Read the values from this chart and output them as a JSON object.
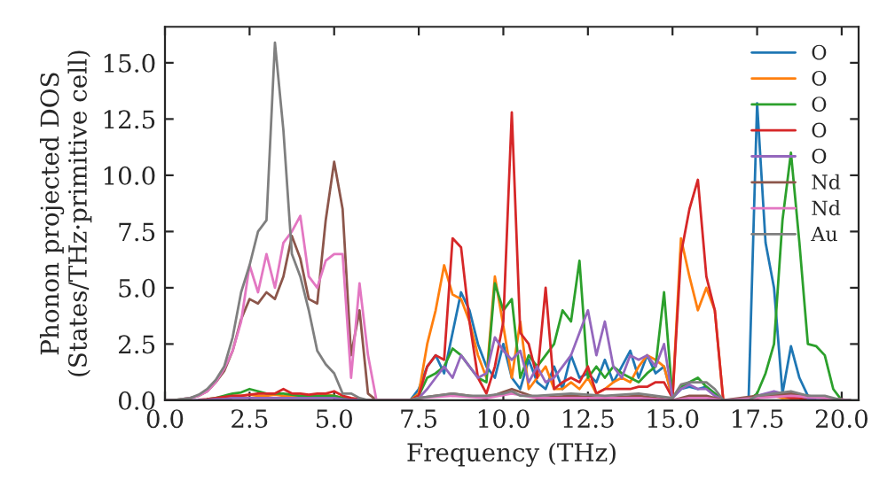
{
  "chart_data": {
    "type": "line",
    "xlabel": "Frequency (THz)",
    "ylabel": "Phonon projected DOS\n(States/THz·primitive cell)",
    "xlim": [
      0.0,
      20.5
    ],
    "ylim": [
      0.0,
      16.6
    ],
    "xticks": [
      {
        "value": 0,
        "label": "0.0"
      },
      2.5,
      {
        "value": 5,
        "label": "5.0"
      },
      7.5,
      {
        "value": 10,
        "label": "10.0"
      },
      12.5,
      {
        "value": 15,
        "label": "15.0"
      },
      17.5,
      {
        "value": 20,
        "label": "20.0"
      }
    ],
    "yticks": [
      {
        "value": 0,
        "label": "0.0"
      },
      2.5,
      {
        "value": 5,
        "label": "5.0"
      },
      7.5,
      {
        "value": 10,
        "label": "10.0"
      },
      12.5,
      {
        "value": 15,
        "label": "15.0"
      }
    ],
    "grid": false,
    "legend": "top right",
    "marker": "none",
    "line_style": "solid",
    "x": [
      0,
      0.25,
      0.5,
      0.75,
      1,
      1.25,
      1.5,
      1.75,
      2,
      2.25,
      2.5,
      2.75,
      3,
      3.25,
      3.5,
      3.75,
      4,
      4.25,
      4.5,
      4.75,
      5,
      5.25,
      5.5,
      5.75,
      6,
      6.25,
      6.5,
      6.75,
      7,
      7.25,
      7.5,
      7.75,
      8,
      8.25,
      8.5,
      8.75,
      9,
      9.25,
      9.5,
      9.75,
      10,
      10.25,
      10.5,
      10.75,
      11,
      11.25,
      11.5,
      11.75,
      12,
      12.25,
      12.5,
      12.75,
      13,
      13.25,
      13.5,
      13.75,
      14,
      14.25,
      14.5,
      14.75,
      15,
      15.25,
      15.5,
      15.75,
      16,
      16.25,
      16.5,
      16.75,
      17,
      17.25,
      17.5,
      17.75,
      18,
      18.25,
      18.5,
      18.75,
      19,
      19.25,
      19.5,
      19.75,
      20,
      20.25
    ],
    "series": [
      {
        "name": "O",
        "color": "#1f77b4",
        "values": [
          null,
          null,
          null,
          null,
          null,
          null,
          null,
          null,
          null,
          null,
          null,
          null,
          null,
          null,
          null,
          null,
          null,
          null,
          null,
          null,
          null,
          null,
          null,
          null,
          null,
          null,
          null,
          null,
          null,
          0,
          0.5,
          1.5,
          2.0,
          1.2,
          3.0,
          4.8,
          4.0,
          2.5,
          1.5,
          1.0,
          2.5,
          1.0,
          0.5,
          1.8,
          0.8,
          0.5,
          1.5,
          0.5,
          2.0,
          1.0,
          1.2,
          0.8,
          1.8,
          0.8,
          1.5,
          2.2,
          1.0,
          2.0,
          1.2,
          1.5,
          0.1,
          0.5,
          0.6,
          0.5,
          0.6,
          0.3,
          0,
          0,
          0,
          0.1,
          13.2,
          7.0,
          5.0,
          0.3,
          2.4,
          1.0,
          0.2,
          0,
          0,
          null,
          null,
          null
        ]
      },
      {
        "name": "O",
        "color": "#ff7f0e",
        "values": [
          null,
          null,
          null,
          null,
          null,
          null,
          null,
          0.15,
          0.2,
          0.2,
          0.25,
          0.2,
          0.2,
          0.25,
          0.2,
          0.2,
          0.2,
          0.2,
          0.2,
          0.25,
          0.2,
          0.1,
          0.05,
          0.05,
          0,
          0,
          0,
          0,
          0,
          0,
          0.3,
          2.5,
          4.0,
          6.0,
          4.7,
          4.5,
          3.5,
          2.0,
          1.0,
          5.5,
          3.3,
          1.0,
          3.5,
          0.5,
          1.0,
          1.5,
          0.5,
          0.5,
          0.8,
          0.5,
          1.0,
          0.3,
          0.5,
          0.8,
          1.0,
          0.8,
          1.5,
          2.0,
          1.8,
          1.5,
          0.1,
          7.2,
          5.5,
          4.0,
          5.0,
          4.0,
          0,
          0,
          0,
          0,
          0.1,
          0.2,
          0.2,
          0.1,
          0.1,
          0.1,
          null,
          null,
          null,
          null,
          null,
          null
        ]
      },
      {
        "name": "O",
        "color": "#2ca02c",
        "values": [
          null,
          null,
          null,
          null,
          null,
          0.05,
          0.1,
          0.2,
          0.3,
          0.35,
          0.5,
          0.4,
          0.3,
          0.3,
          0.3,
          0.25,
          0.2,
          0.2,
          0.2,
          0.2,
          0.2,
          0.1,
          0.05,
          0.05,
          0,
          0,
          0,
          0,
          0,
          0,
          0.2,
          1.0,
          1.2,
          1.5,
          2.3,
          2.0,
          1.5,
          1.0,
          0.8,
          5.2,
          4.0,
          4.5,
          1.0,
          2.0,
          1.5,
          2.0,
          2.5,
          4.0,
          3.5,
          6.2,
          1.0,
          1.5,
          1.0,
          1.5,
          1.2,
          1.0,
          0.8,
          1.2,
          1.5,
          4.8,
          0.1,
          0.6,
          0.8,
          1.0,
          0.6,
          0.3,
          0,
          0,
          0,
          0,
          0.3,
          1.2,
          2.5,
          8.0,
          11.0,
          7.0,
          2.5,
          2.4,
          2.0,
          0.5,
          0,
          0
        ]
      },
      {
        "name": "O",
        "color": "#d62728",
        "values": [
          null,
          null,
          null,
          null,
          0.02,
          0.05,
          0.1,
          0.15,
          0.2,
          0.2,
          0.25,
          0.3,
          0.3,
          0.3,
          0.5,
          0.3,
          0.3,
          0.25,
          0.3,
          0.3,
          0.4,
          0.2,
          0.1,
          0.05,
          0,
          0,
          0,
          0,
          0,
          0,
          0.2,
          1.5,
          2.0,
          1.8,
          7.2,
          6.8,
          3.5,
          1.0,
          0.3,
          1.5,
          3.5,
          12.8,
          3.0,
          2.5,
          1.0,
          5.0,
          0.5,
          0.8,
          1.0,
          0.8,
          1.5,
          0.3,
          0.5,
          0.5,
          0.5,
          0.5,
          0.6,
          0.6,
          0.8,
          0.8,
          0.1,
          6.5,
          8.5,
          9.8,
          5.5,
          4.0,
          0,
          0,
          0,
          0,
          0.1,
          0.2,
          0.3,
          0.2,
          0.1,
          0.1,
          0,
          null,
          null,
          null,
          null,
          null
        ]
      },
      {
        "name": "O",
        "color": "#9467bd",
        "values": [
          0,
          0,
          0,
          0,
          0.01,
          0.02,
          0.05,
          0.05,
          0.1,
          0.1,
          0.1,
          0.1,
          0.1,
          0.1,
          0.1,
          0.1,
          0.1,
          0.1,
          0.1,
          0.1,
          0.1,
          0.05,
          0.02,
          0.02,
          0,
          0,
          0,
          0,
          0,
          0,
          0.1,
          0.5,
          1.0,
          1.5,
          1.0,
          2.0,
          1.5,
          1.0,
          1.2,
          2.8,
          2.2,
          1.8,
          2.2,
          0.8,
          1.5,
          0.8,
          1.0,
          1.5,
          2.0,
          3.0,
          4.0,
          2.0,
          3.5,
          1.5,
          1.0,
          2.0,
          1.8,
          2.0,
          1.5,
          2.5,
          0.1,
          0.5,
          0.7,
          0.5,
          0.5,
          0.2,
          0,
          0,
          0,
          0,
          0.2,
          0.3,
          0.4,
          0.3,
          0.3,
          0.2,
          0.1,
          0,
          0,
          0,
          0,
          0
        ]
      },
      {
        "name": "Nd",
        "color": "#8c564b",
        "x": [
          0,
          0.25,
          0.5,
          0.75,
          1,
          1.25,
          1.5,
          1.75,
          2,
          2.25,
          2.5,
          2.75,
          3,
          3.25,
          3.5,
          3.75,
          4,
          4.25,
          4.5,
          4.75,
          5,
          5.25,
          5.5,
          5.75,
          6,
          6.25,
          7.25,
          7.5,
          8.5,
          9.5,
          10.25,
          11,
          12,
          13,
          14,
          15,
          15.5,
          16,
          16.5,
          17.5,
          18.5,
          19.5,
          20.25
        ],
        "values": [
          0,
          0,
          0.05,
          0.1,
          0.2,
          0.4,
          0.8,
          1.3,
          2.2,
          3.6,
          4.5,
          4.3,
          4.8,
          4.5,
          5.5,
          7.3,
          6.3,
          4.5,
          4.3,
          8.0,
          10.6,
          8.5,
          2.0,
          4.0,
          0.3,
          0,
          0,
          0.1,
          0.3,
          0.1,
          0.5,
          0.1,
          0.2,
          0.1,
          0.2,
          0,
          0.2,
          0.2,
          0,
          0.2,
          0.3,
          0.1,
          0
        ]
      },
      {
        "name": "Nd",
        "color": "#e377c2",
        "x": [
          0.5,
          0.75,
          1,
          1.25,
          1.5,
          1.75,
          2,
          2.25,
          2.5,
          2.75,
          3,
          3.25,
          3.5,
          3.75,
          4,
          4.25,
          4.5,
          4.75,
          5,
          5.25,
          5.5,
          5.75,
          6,
          6.25,
          7.25,
          7.5,
          8.5,
          9.5,
          10.25,
          11,
          12,
          13,
          14,
          15,
          15.5,
          16,
          16.5,
          17.5,
          18.5,
          19.5,
          20.25
        ],
        "values": [
          0.05,
          0.1,
          0.2,
          0.4,
          0.8,
          1.4,
          2.2,
          3.5,
          6.0,
          4.8,
          6.5,
          5.0,
          7.0,
          7.5,
          8.2,
          5.5,
          5.0,
          6.2,
          6.5,
          6.5,
          1.0,
          5.2,
          2.0,
          0,
          0,
          0.1,
          0.2,
          0.1,
          0.3,
          0.1,
          0.1,
          0.1,
          0.1,
          0,
          0.1,
          0.1,
          0,
          0.1,
          0.2,
          0.1,
          0
        ]
      },
      {
        "name": "Au",
        "color": "#7f7f7f",
        "x": [
          0,
          0.25,
          0.5,
          0.75,
          1,
          1.25,
          1.5,
          1.75,
          2,
          2.25,
          2.5,
          2.75,
          3,
          3.25,
          3.5,
          3.75,
          4,
          4.25,
          4.5,
          4.75,
          5,
          5.25,
          5.5,
          5.75,
          6,
          6.25,
          7.25,
          7.5,
          8,
          8.5,
          9,
          9.5,
          10,
          10.25,
          10.5,
          11,
          12,
          13,
          14,
          15,
          15.25,
          15.5,
          16,
          16.25,
          16.5,
          17.25,
          17.5,
          18,
          18.5,
          19,
          19.5,
          20,
          20.25
        ],
        "values": [
          0,
          0,
          0.05,
          0.1,
          0.25,
          0.5,
          0.9,
          1.5,
          2.8,
          4.8,
          6.0,
          7.5,
          8.0,
          15.9,
          12.0,
          6.5,
          5.5,
          4.0,
          2.2,
          1.6,
          1.2,
          0.3,
          0.3,
          0.1,
          0,
          0,
          0,
          0.1,
          0.2,
          0.3,
          0.2,
          0.2,
          0.3,
          0.4,
          0.2,
          0.2,
          0.3,
          0.2,
          0.3,
          0.1,
          0.7,
          0.8,
          0.8,
          0.5,
          0,
          0,
          0.2,
          0.3,
          0.4,
          0.2,
          0.2,
          0,
          0
        ]
      }
    ]
  }
}
